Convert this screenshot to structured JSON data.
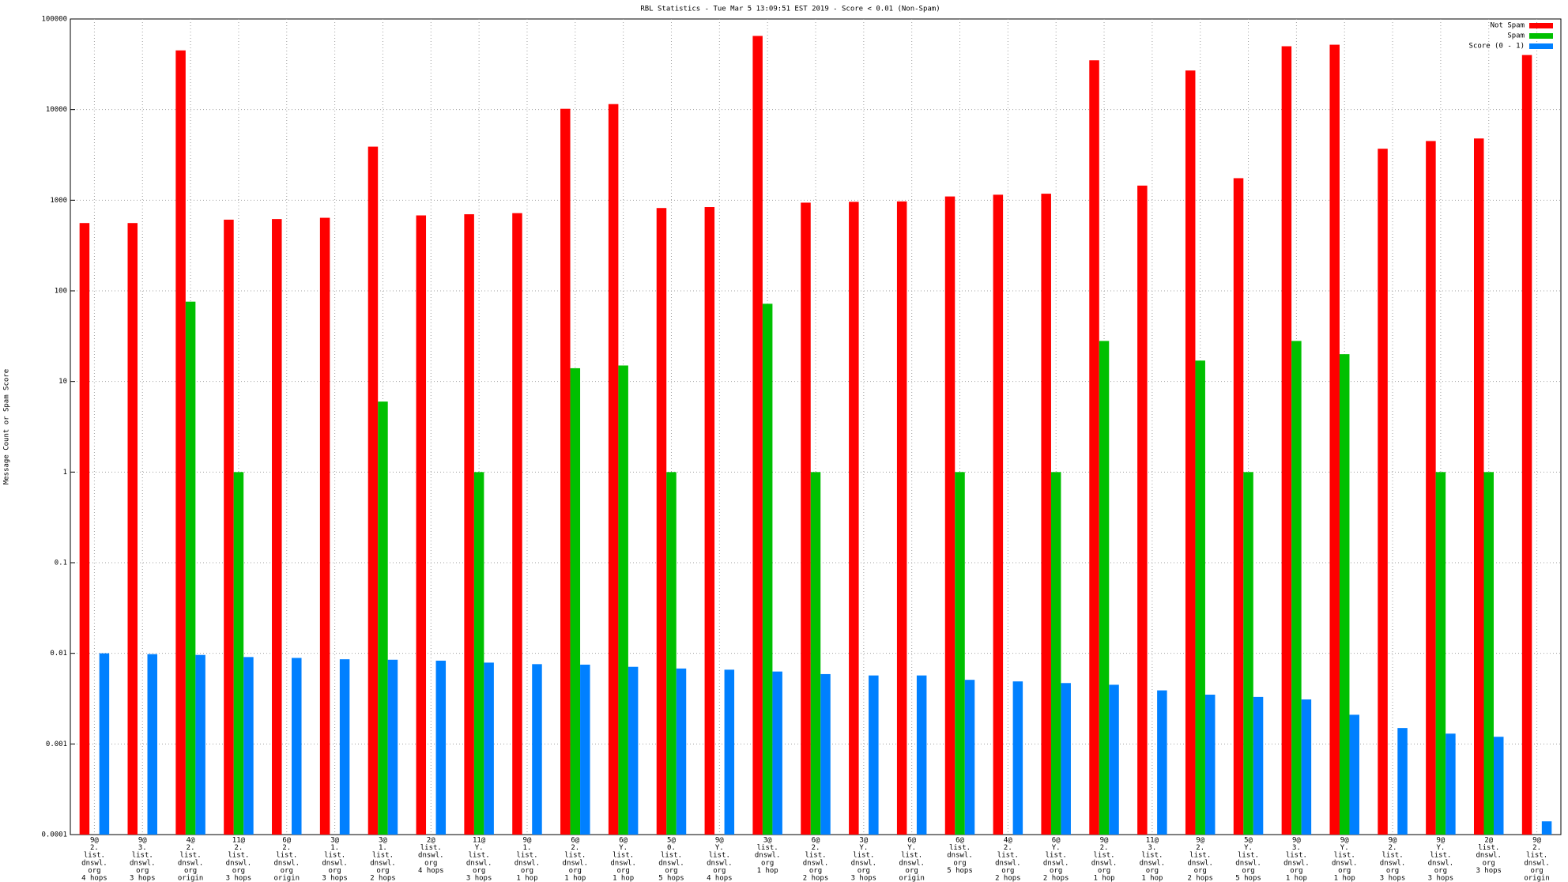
{
  "chart_data": {
    "type": "bar",
    "log_scale": true,
    "grid": true,
    "legend": "top-right",
    "title": "RBL Statistics - Tue Mar  5 13:09:51 EST 2019 - Score < 0.01 (Non-Spam)",
    "y_label": "Message Count or Spam Score",
    "ylim": [
      0.0001,
      100000
    ],
    "yticks": [
      0.0001,
      0.001,
      0.01,
      0.1,
      1,
      10,
      100,
      1000,
      10000,
      100000
    ],
    "categories": [
      [
        "9@",
        "2.",
        "list.",
        "dnswl.",
        "org",
        "4 hops"
      ],
      [
        "9@",
        "3.",
        "list.",
        "dnswl.",
        "org",
        "3 hops"
      ],
      [
        "4@",
        "2.",
        "list.",
        "dnswl.",
        "org",
        "origin"
      ],
      [
        "11@",
        "2.",
        "list.",
        "dnswl.",
        "org",
        "3 hops"
      ],
      [
        "6@",
        "2.",
        "list.",
        "dnswl.",
        "org",
        "origin"
      ],
      [
        "3@",
        "1.",
        "list.",
        "dnswl.",
        "org",
        "3 hops"
      ],
      [
        "3@",
        "1.",
        "list.",
        "dnswl.",
        "org",
        "2 hops"
      ],
      [
        "2@",
        "list.",
        "dnswl.",
        "org",
        "4 hops"
      ],
      [
        "11@",
        "Y.",
        "list.",
        "dnswl.",
        "org",
        "3 hops"
      ],
      [
        "9@",
        "1.",
        "list.",
        "dnswl.",
        "org",
        "1 hop"
      ],
      [
        "6@",
        "2.",
        "list.",
        "dnswl.",
        "org",
        "1 hop"
      ],
      [
        "6@",
        "Y.",
        "list.",
        "dnswl.",
        "org",
        "1 hop"
      ],
      [
        "5@",
        "0.",
        "list.",
        "dnswl.",
        "org",
        "5 hops"
      ],
      [
        "9@",
        "Y.",
        "list.",
        "dnswl.",
        "org",
        "4 hops"
      ],
      [
        "3@",
        "list.",
        "dnswl.",
        "org",
        "1 hop"
      ],
      [
        "6@",
        "2.",
        "list.",
        "dnswl.",
        "org",
        "2 hops"
      ],
      [
        "3@",
        "Y.",
        "list.",
        "dnswl.",
        "org",
        "3 hops"
      ],
      [
        "6@",
        "Y.",
        "list.",
        "dnswl.",
        "org",
        "origin"
      ],
      [
        "6@",
        "list.",
        "dnswl.",
        "org",
        "5 hops"
      ],
      [
        "4@",
        "2.",
        "list.",
        "dnswl.",
        "org",
        "2 hops"
      ],
      [
        "6@",
        "Y.",
        "list.",
        "dnswl.",
        "org",
        "2 hops"
      ],
      [
        "9@",
        "2.",
        "list.",
        "dnswl.",
        "org",
        "1 hop"
      ],
      [
        "11@",
        "3.",
        "list.",
        "dnswl.",
        "org",
        "1 hop"
      ],
      [
        "9@",
        "2.",
        "list.",
        "dnswl.",
        "org",
        "2 hops"
      ],
      [
        "5@",
        "Y.",
        "list.",
        "dnswl.",
        "org",
        "5 hops"
      ],
      [
        "9@",
        "3.",
        "list.",
        "dnswl.",
        "org",
        "1 hop"
      ],
      [
        "9@",
        "Y.",
        "list.",
        "dnswl.",
        "org",
        "1 hop"
      ],
      [
        "9@",
        "2.",
        "list.",
        "dnswl.",
        "org",
        "3 hops"
      ],
      [
        "9@",
        "Y.",
        "list.",
        "dnswl.",
        "org",
        "3 hops"
      ],
      [
        "2@",
        "list.",
        "dnswl.",
        "org",
        "3 hops"
      ],
      [
        "9@",
        "2.",
        "list.",
        "dnswl.",
        "org",
        "origin"
      ]
    ],
    "series": [
      {
        "name": "Not Spam",
        "color": "#ff0000",
        "values": [
          560,
          560,
          45000,
          610,
          620,
          640,
          3900,
          680,
          700,
          720,
          10200,
          11500,
          820,
          840,
          65000,
          940,
          960,
          970,
          1100,
          1150,
          1180,
          35000,
          1450,
          27000,
          1750,
          50000,
          52000,
          3700,
          4500,
          4800,
          40000
        ]
      },
      {
        "name": "Spam",
        "color": "#00c000",
        "values": [
          null,
          null,
          76,
          1,
          null,
          null,
          6,
          null,
          1,
          null,
          14,
          15,
          1,
          null,
          72,
          1,
          null,
          null,
          1,
          null,
          1,
          28,
          null,
          17,
          1,
          28,
          20,
          null,
          1,
          1,
          null
        ]
      },
      {
        "name": "Score (0 - 1)",
        "color": "#0080ff",
        "values": [
          0.01,
          0.0098,
          0.0096,
          0.0091,
          0.0089,
          0.0086,
          0.0085,
          0.0083,
          0.0079,
          0.0076,
          0.0075,
          0.0071,
          0.0068,
          0.0066,
          0.0063,
          0.0059,
          0.0057,
          0.0057,
          0.0051,
          0.0049,
          0.0047,
          0.0045,
          0.0039,
          0.0035,
          0.0033,
          0.0031,
          0.0021,
          0.0015,
          0.0013,
          0.0012,
          0.00014
        ]
      }
    ]
  }
}
